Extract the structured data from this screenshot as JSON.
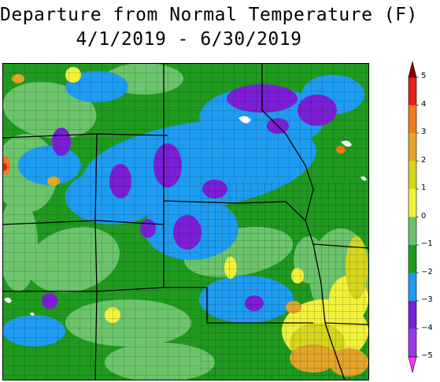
{
  "title": {
    "line1": "Departure from Normal Temperature (F)",
    "line2": "4/1/2019 - 6/30/2019"
  },
  "map": {
    "base_color": "#1f9a1f",
    "water_color": "#ffffff",
    "zones": [
      {
        "category": "-4",
        "color": "#7b1fd6"
      },
      {
        "category": "-3",
        "color": "#1e9cf0"
      },
      {
        "category": "-1",
        "color": "#6cc46c"
      },
      {
        "category": "0",
        "color": "#f2f23a"
      },
      {
        "category": "1",
        "color": "#d6d61e"
      },
      {
        "category": "2",
        "color": "#e3a52a"
      },
      {
        "category": "3",
        "color": "#f07a1e"
      },
      {
        "category": "4",
        "color": "#e61e1e"
      }
    ]
  },
  "legend": {
    "labels": [
      "5",
      "4",
      "3",
      "2",
      "1",
      "0",
      "−1",
      "−2",
      "−3",
      "−4",
      "−5"
    ],
    "colors": [
      "#e61e1e",
      "#f07a1e",
      "#e3a52a",
      "#d6d61e",
      "#f2f23a",
      "#6cc46c",
      "#1f9a1f",
      "#1e9cf0",
      "#7b1fd6",
      "#9b3be6"
    ],
    "top_cap_color": "#8b0000",
    "bottom_cap_color": "#ff33ff"
  }
}
